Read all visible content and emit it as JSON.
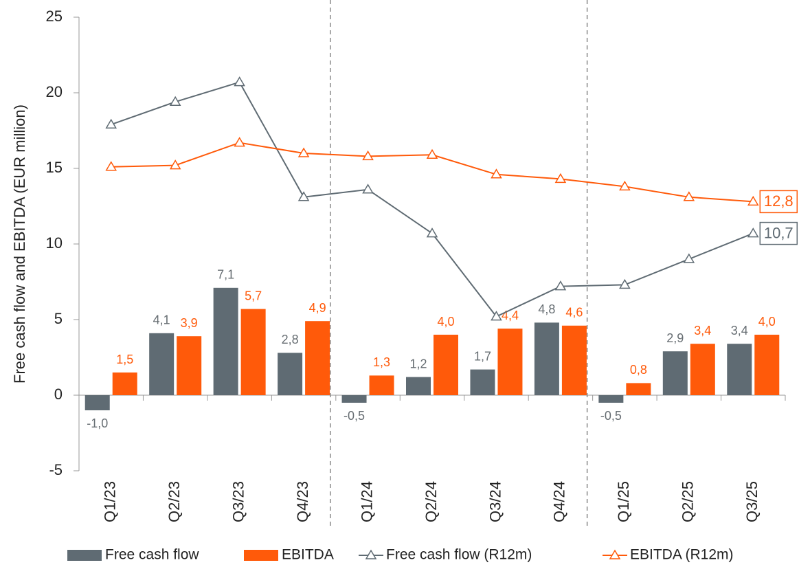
{
  "chart_data": {
    "type": "bar-line",
    "y_label": "Free cash flow and EBITDA (EUR million)",
    "categories": [
      "Q1/23",
      "Q2/23",
      "Q3/23",
      "Q4/23",
      "Q1/24",
      "Q2/24",
      "Q3/24",
      "Q4/24",
      "Q1/25",
      "Q2/25",
      "Q3/25"
    ],
    "series": [
      {
        "name": "Free cash flow",
        "kind": "bar",
        "color": "#5f6b73",
        "values": [
          -1.0,
          4.1,
          7.1,
          2.8,
          -0.5,
          1.2,
          1.7,
          4.8,
          -0.5,
          2.9,
          3.4
        ],
        "value_labels": [
          "-1,0",
          "4,1",
          "7,1",
          "2,8",
          "-0,5",
          "1,2",
          "1,7",
          "4,8",
          "-0,5",
          "2,9",
          "3,4"
        ]
      },
      {
        "name": "EBITDA",
        "kind": "bar",
        "color": "#ff5a0a",
        "values": [
          1.5,
          3.9,
          5.7,
          4.9,
          1.3,
          4.0,
          4.4,
          4.6,
          0.8,
          3.4,
          4.0
        ],
        "value_labels": [
          "1,5",
          "3,9",
          "5,7",
          "4,9",
          "1,3",
          "4,0",
          "4,4",
          "4,6",
          "0,8",
          "3,4",
          "4,0"
        ]
      },
      {
        "name": "Free cash flow (R12m)",
        "kind": "line",
        "color": "#5f6b73",
        "values": [
          17.9,
          19.4,
          20.7,
          13.1,
          13.6,
          10.7,
          5.2,
          7.2,
          7.3,
          9.0,
          10.7
        ],
        "value_labels": [
          null,
          null,
          null,
          null,
          null,
          null,
          null,
          null,
          null,
          null,
          "10,7"
        ]
      },
      {
        "name": "EBITDA (R12m)",
        "kind": "line",
        "color": "#ff5a0a",
        "values": [
          15.1,
          15.2,
          16.7,
          16.0,
          15.8,
          15.9,
          14.6,
          14.3,
          13.8,
          13.1,
          12.8
        ],
        "value_labels": [
          null,
          null,
          null,
          null,
          null,
          null,
          null,
          null,
          null,
          null,
          "12,8"
        ]
      }
    ],
    "ylim": [
      -5,
      25
    ],
    "yticks": [
      -5,
      0,
      5,
      10,
      15,
      20,
      25
    ]
  }
}
